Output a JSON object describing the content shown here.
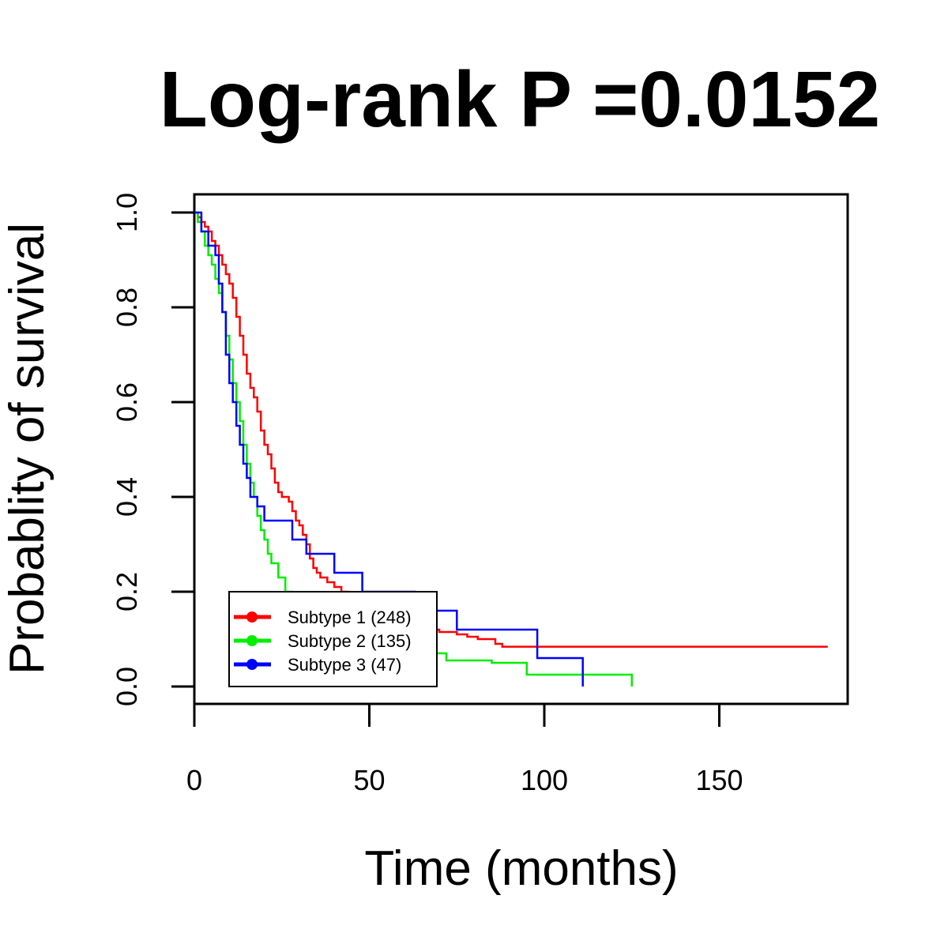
{
  "chart_data": {
    "type": "line",
    "title": "Log-rank P =0.0152",
    "xlabel": "Time (months)",
    "ylabel": "Probablity of survival",
    "xlim": [
      0,
      187
    ],
    "ylim": [
      0,
      1.0
    ],
    "x_ticks": [
      0,
      50,
      100,
      150
    ],
    "x_tick_labels": [
      "0",
      "50",
      "100",
      "150"
    ],
    "y_ticks": [
      0,
      0.2,
      0.4,
      0.6,
      0.8,
      1.0
    ],
    "y_tick_labels": [
      "0.0",
      "0.2",
      "0.4",
      "0.6",
      "0.8",
      "1.0"
    ],
    "grid": false,
    "legend_position": "bottom-left",
    "series": [
      {
        "name": "Subtype 1 (248)",
        "color": "#ff0000",
        "x": [
          0,
          1,
          2,
          3,
          4,
          5,
          6,
          7,
          8,
          9,
          10,
          11,
          12,
          13,
          14,
          15,
          16,
          17,
          18,
          19,
          20,
          21,
          22,
          23,
          24,
          25,
          26,
          27,
          28,
          29,
          30,
          31,
          32,
          33,
          34,
          35,
          36,
          38,
          40,
          42,
          44,
          46,
          48,
          50,
          52,
          54,
          56,
          58,
          60,
          62,
          64,
          66,
          68,
          70,
          72,
          75,
          78,
          81,
          86,
          88,
          100,
          181
        ],
        "y": [
          1.0,
          0.99,
          0.98,
          0.97,
          0.96,
          0.94,
          0.93,
          0.91,
          0.89,
          0.87,
          0.85,
          0.82,
          0.78,
          0.74,
          0.7,
          0.66,
          0.63,
          0.61,
          0.58,
          0.54,
          0.51,
          0.49,
          0.46,
          0.43,
          0.41,
          0.4,
          0.4,
          0.39,
          0.37,
          0.35,
          0.34,
          0.32,
          0.3,
          0.27,
          0.25,
          0.24,
          0.23,
          0.22,
          0.21,
          0.2,
          0.19,
          0.18,
          0.17,
          0.16,
          0.155,
          0.15,
          0.145,
          0.14,
          0.135,
          0.13,
          0.125,
          0.12,
          0.12,
          0.115,
          0.115,
          0.11,
          0.105,
          0.1,
          0.09,
          0.084,
          0.084,
          0.084
        ]
      },
      {
        "name": "Subtype 2 (135)",
        "color": "#00ee00",
        "x": [
          0,
          1,
          2,
          3,
          4,
          5,
          6,
          7,
          8,
          9,
          10,
          11,
          12,
          13,
          14,
          15,
          16,
          17,
          18,
          19,
          20,
          21,
          22,
          24,
          26,
          28,
          30,
          32,
          35,
          38,
          42,
          46,
          50,
          55,
          60,
          65,
          72,
          85,
          95,
          106,
          115,
          125
        ],
        "y": [
          1.0,
          0.98,
          0.96,
          0.93,
          0.91,
          0.89,
          0.86,
          0.83,
          0.79,
          0.74,
          0.69,
          0.64,
          0.6,
          0.56,
          0.51,
          0.47,
          0.43,
          0.4,
          0.36,
          0.33,
          0.31,
          0.28,
          0.26,
          0.23,
          0.2,
          0.18,
          0.16,
          0.15,
          0.14,
          0.13,
          0.12,
          0.11,
          0.1,
          0.09,
          0.08,
          0.07,
          0.055,
          0.05,
          0.025,
          0.025,
          0.025,
          0.0
        ]
      },
      {
        "name": "Subtype 3 (47)",
        "color": "#0000ff",
        "x": [
          0,
          2,
          4,
          6,
          7,
          8,
          9,
          10,
          11,
          12,
          13,
          14,
          15,
          16,
          18,
          20,
          22,
          24,
          26,
          28,
          32,
          36,
          40,
          44,
          48,
          56,
          63,
          68,
          75,
          85,
          98,
          105,
          111
        ],
        "y": [
          1.0,
          0.96,
          0.93,
          0.91,
          0.85,
          0.79,
          0.7,
          0.64,
          0.6,
          0.55,
          0.51,
          0.47,
          0.44,
          0.4,
          0.38,
          0.35,
          0.35,
          0.35,
          0.35,
          0.31,
          0.28,
          0.28,
          0.24,
          0.24,
          0.2,
          0.2,
          0.16,
          0.16,
          0.12,
          0.12,
          0.06,
          0.06,
          0.0
        ]
      }
    ]
  }
}
